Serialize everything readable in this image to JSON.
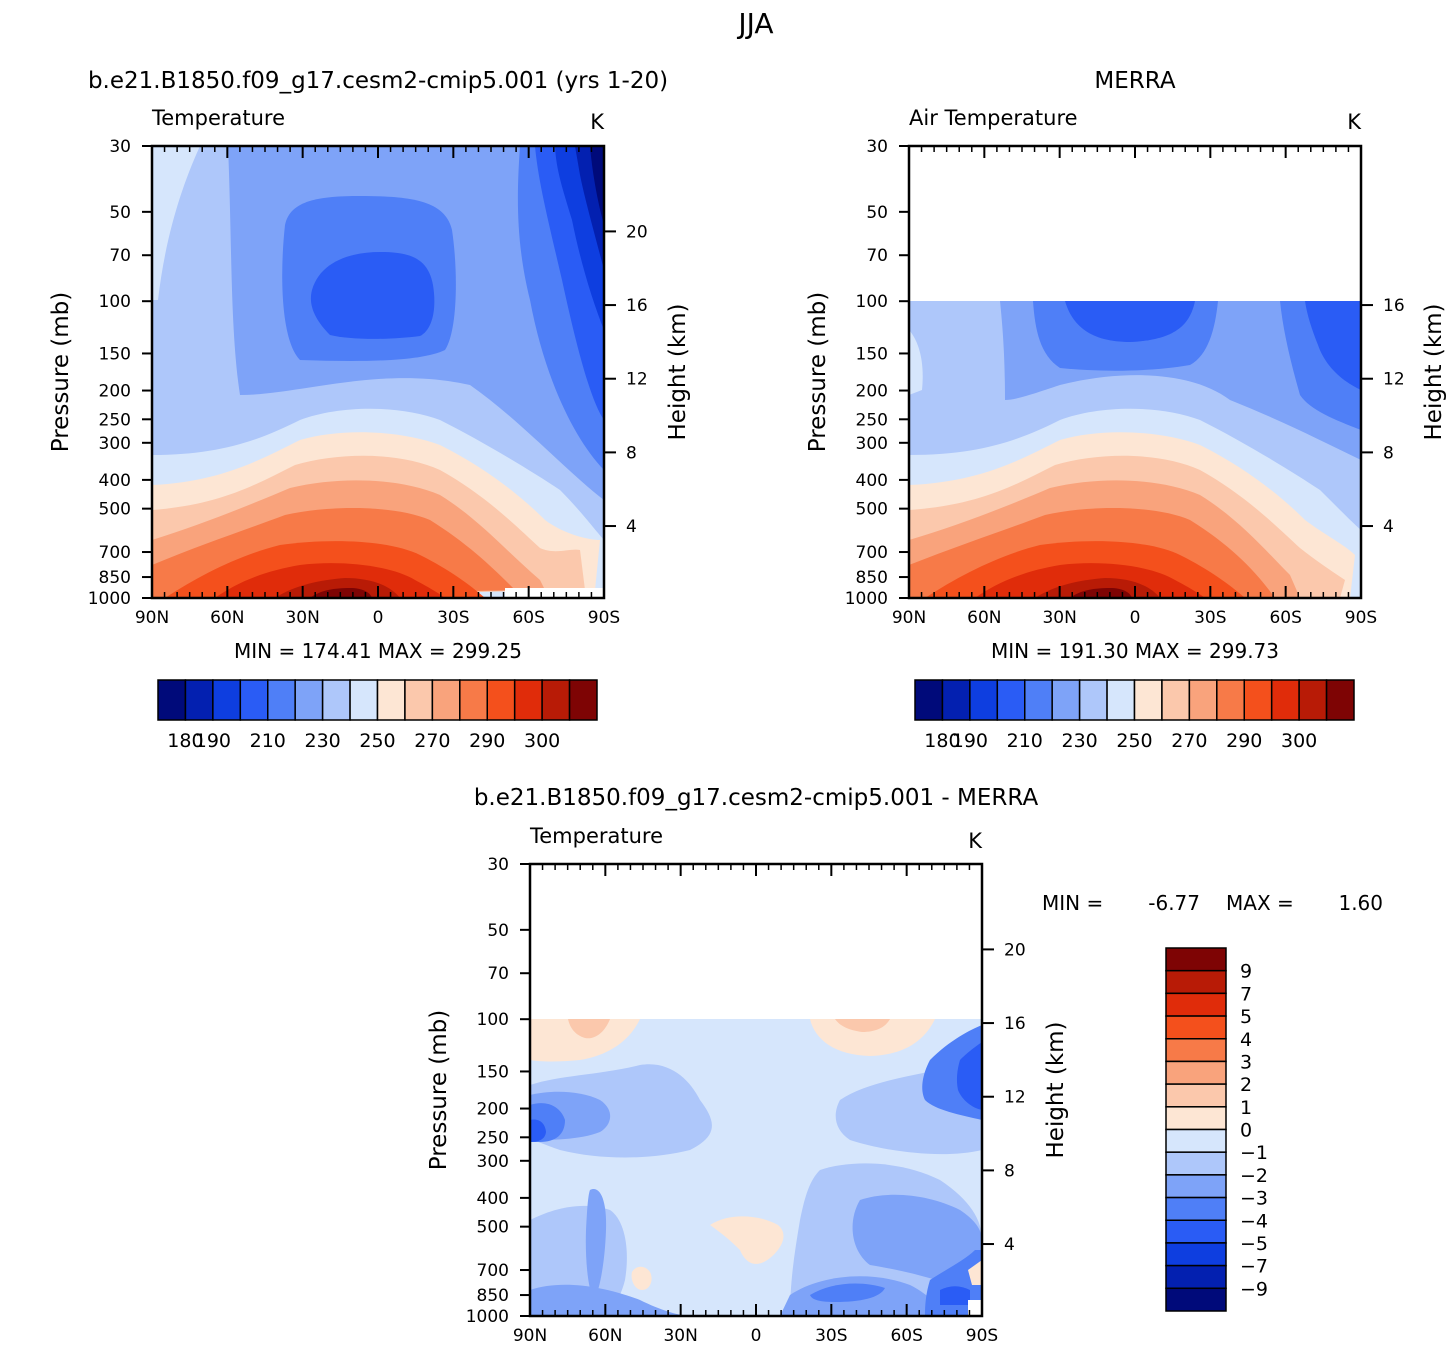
{
  "figure": {
    "season": "JJA"
  },
  "palettes": {
    "abs": [
      "#000a7a",
      "#0320b0",
      "#0e3ee0",
      "#2a5cf5",
      "#4f7ff7",
      "#7ea3f8",
      "#aec7fa",
      "#d6e6fc",
      "#fde6d4",
      "#fbc8ac",
      "#f9a37c",
      "#f77a48",
      "#f4501c",
      "#e02c0a",
      "#b81b06",
      "#7e0404"
    ],
    "diff": [
      "#7e0404",
      "#b81b06",
      "#e02c0a",
      "#f4501c",
      "#f77a48",
      "#f9a37c",
      "#fbc8ac",
      "#fde6d4",
      "#d6e6fc",
      "#aec7fa",
      "#7ea3f8",
      "#4f7ff7",
      "#2a5cf5",
      "#0e3ee0",
      "#0320b0",
      "#000a7a"
    ]
  },
  "chart_data": [
    {
      "type": "contour",
      "panel": "model",
      "case_title": "b.e21.B1850.f09_g17.cesm2-cmip5.001 (yrs 1-20)",
      "variable": "Temperature",
      "units": "K",
      "ylabel_left": "Pressure (mb)",
      "ylabel_right": "Height (km)",
      "x_ticks": [
        "90N",
        "60N",
        "30N",
        "0",
        "30S",
        "60S",
        "90S"
      ],
      "pressure_ticks": [
        30,
        50,
        70,
        100,
        150,
        200,
        250,
        300,
        400,
        500,
        700,
        850,
        1000
      ],
      "height_ticks": [
        20,
        16,
        12,
        8,
        4
      ],
      "stats": "MIN = 174.41 MAX = 299.25",
      "min": 174.41,
      "max": 299.25,
      "data_top_mb": 30,
      "levels": [
        170,
        180,
        190,
        200,
        210,
        220,
        230,
        240,
        250,
        260,
        270,
        280,
        290,
        295,
        300
      ],
      "colorbar_labels": [
        "180",
        "190",
        "210",
        "230",
        "250",
        "270",
        "290",
        "300"
      ]
    },
    {
      "type": "contour",
      "panel": "obs",
      "case_title": "MERRA",
      "variable": "Air Temperature",
      "units": "K",
      "ylabel_left": "Pressure (mb)",
      "ylabel_right": "Height (km)",
      "x_ticks": [
        "90N",
        "60N",
        "30N",
        "0",
        "30S",
        "60S",
        "90S"
      ],
      "pressure_ticks": [
        30,
        50,
        70,
        100,
        150,
        200,
        250,
        300,
        400,
        500,
        700,
        850,
        1000
      ],
      "height_ticks": [
        16,
        12,
        8,
        4
      ],
      "stats": "MIN = 191.30 MAX = 299.73",
      "min": 191.3,
      "max": 299.73,
      "data_top_mb": 100,
      "levels": [
        170,
        180,
        190,
        200,
        210,
        220,
        230,
        240,
        250,
        260,
        270,
        280,
        290,
        295,
        300
      ],
      "colorbar_labels": [
        "180",
        "190",
        "210",
        "230",
        "250",
        "270",
        "290",
        "300"
      ]
    },
    {
      "type": "contour",
      "panel": "diff",
      "case_title": "b.e21.B1850.f09_g17.cesm2-cmip5.001 - MERRA",
      "variable": "Temperature",
      "units": "K",
      "ylabel_left": "Pressure (mb)",
      "ylabel_right": "Height (km)",
      "x_ticks": [
        "90N",
        "60N",
        "30N",
        "0",
        "30S",
        "60S",
        "90S"
      ],
      "pressure_ticks": [
        30,
        50,
        70,
        100,
        150,
        200,
        250,
        300,
        400,
        500,
        700,
        850,
        1000
      ],
      "height_ticks": [
        20,
        16,
        12,
        8,
        4
      ],
      "stats_min_label": "MIN =",
      "stats_min": "-6.77",
      "stats_max_label": "MAX =",
      "stats_max": "1.60",
      "data_top_mb": 100,
      "levels": [
        -9,
        -7,
        -5,
        -4,
        -3,
        -2,
        -1,
        0,
        1,
        2,
        3,
        4,
        5,
        7,
        9
      ],
      "colorbar_labels": [
        "9",
        "7",
        "5",
        "4",
        "3",
        "2",
        "1",
        "0",
        "-1",
        "-2",
        "-3",
        "-4",
        "-5",
        "-7",
        "-9"
      ]
    }
  ]
}
